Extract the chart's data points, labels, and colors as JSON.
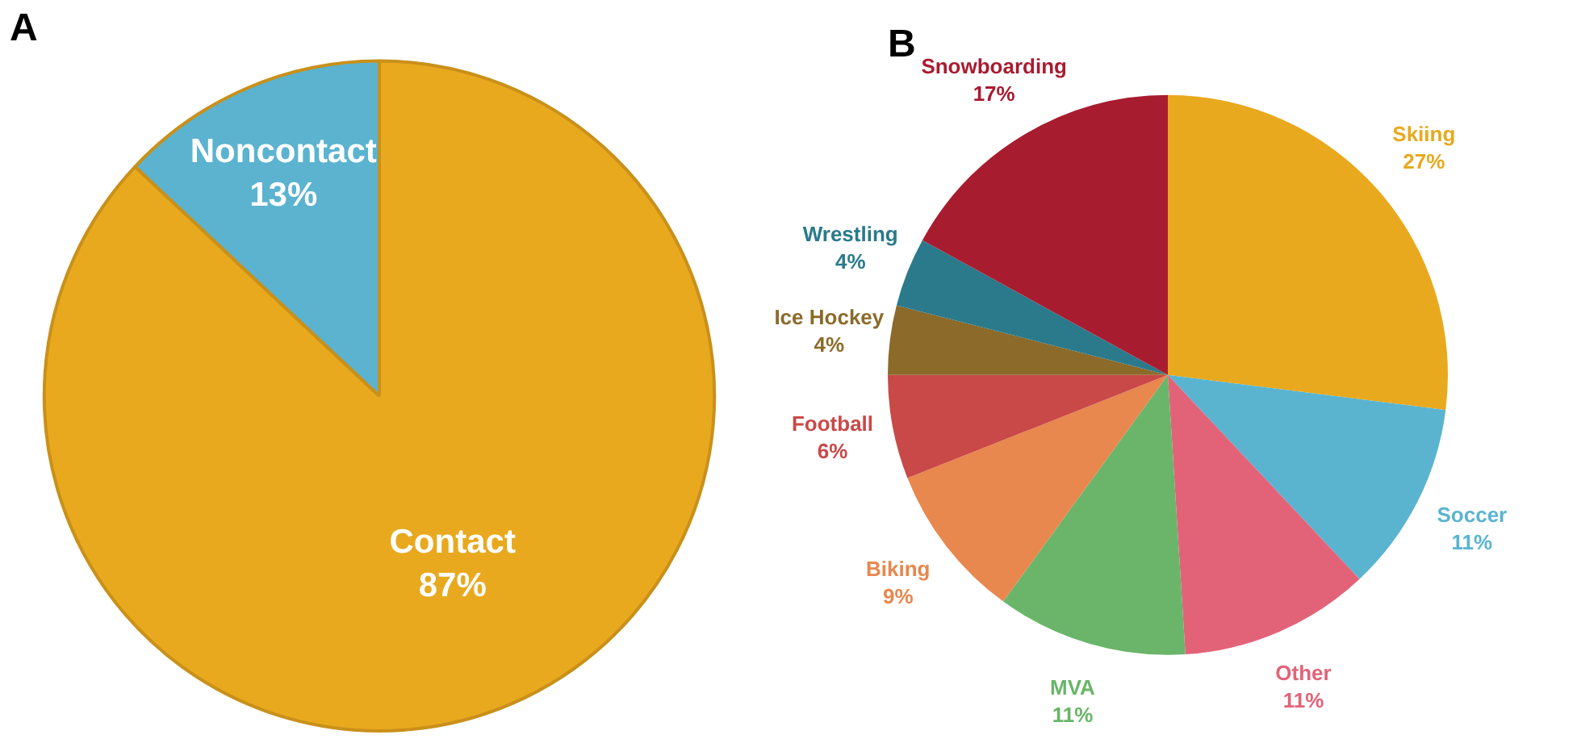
{
  "chart_data": [
    {
      "type": "pie",
      "title": "A",
      "categories": [
        "Contact",
        "Noncontact"
      ],
      "values": [
        87,
        13
      ],
      "colors": [
        "#e8a91e",
        "#5bb3cf"
      ],
      "value_labels": [
        "87%",
        "13%"
      ],
      "legend": false
    },
    {
      "type": "pie",
      "title": "B",
      "categories": [
        "Skiing",
        "Soccer",
        "Other",
        "MVA",
        "Biking",
        "Football",
        "Ice Hockey",
        "Wrestling",
        "Snowboarding"
      ],
      "values": [
        27,
        11,
        11,
        11,
        9,
        6,
        4,
        4,
        17
      ],
      "colors": [
        "#e8a91e",
        "#5ab4d0",
        "#e26378",
        "#6ab56a",
        "#e8874e",
        "#c94848",
        "#8b6a2a",
        "#2a7a8c",
        "#a81c30"
      ],
      "value_labels": [
        "27%",
        "11%",
        "11%",
        "11%",
        "9%",
        "6%",
        "4%",
        "4%",
        "17%"
      ],
      "legend": false
    }
  ]
}
